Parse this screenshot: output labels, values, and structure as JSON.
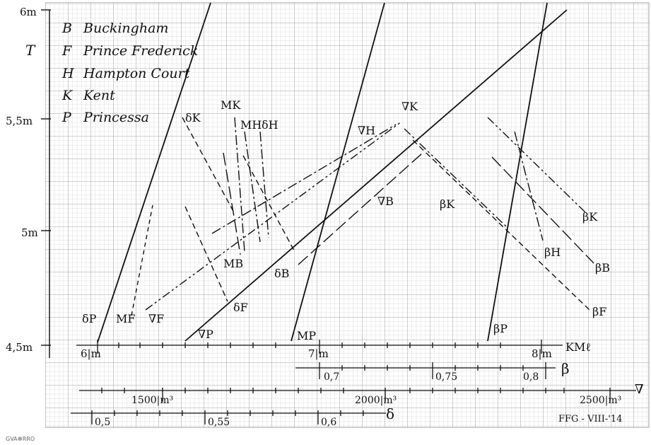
{
  "chart_data": {
    "type": "line",
    "title": "",
    "y_axis": {
      "ticks": [
        "6m",
        "5,5m",
        "5m",
        "4,5m"
      ],
      "symbol": "T"
    },
    "legend": [
      {
        "key": "B",
        "name": "Buckingham"
      },
      {
        "key": "F",
        "name": "Prince Frederick"
      },
      {
        "key": "H",
        "name": "Hampton Court"
      },
      {
        "key": "K",
        "name": "Kent"
      },
      {
        "key": "P",
        "name": "Princessa"
      }
    ],
    "x_scales": [
      {
        "id": "KML",
        "symbol": "KMℓ",
        "ticks": [
          "6|m",
          "7|m",
          "8|m"
        ]
      },
      {
        "id": "beta",
        "symbol": "β",
        "ticks": [
          "0,7",
          "0,75",
          "0,8"
        ]
      },
      {
        "id": "nabla",
        "symbol": "∇",
        "ticks": [
          "1500|m³",
          "2000|m³",
          "2500|m³"
        ]
      },
      {
        "id": "delta",
        "symbol": "δ",
        "ticks": [
          "0,5",
          "0,55",
          "0,6"
        ]
      }
    ],
    "series": [
      {
        "name": "δP",
        "style": "solid"
      },
      {
        "name": "MP",
        "style": "solid"
      },
      {
        "name": "βP",
        "style": "solid"
      },
      {
        "name": "∇P",
        "style": "solid"
      },
      {
        "name": "δK",
        "style": "dashed"
      },
      {
        "name": "MK",
        "style": "dashdot"
      },
      {
        "name": "MH",
        "style": "dashdot"
      },
      {
        "name": "δH",
        "style": "dashdot"
      },
      {
        "name": "∇H",
        "style": "dashdot"
      },
      {
        "name": "∇K",
        "style": "dashdotdot"
      },
      {
        "name": "∇B",
        "style": "longdash"
      },
      {
        "name": "βK",
        "style": "dashdotdot"
      },
      {
        "name": "βH",
        "style": "dashdot"
      },
      {
        "name": "βB",
        "style": "longdash"
      },
      {
        "name": "βF",
        "style": "dashed"
      },
      {
        "name": "MB",
        "style": "longdash"
      },
      {
        "name": "δB",
        "style": "dashed"
      },
      {
        "name": "δF",
        "style": "dashed"
      },
      {
        "name": "MF",
        "style": "dashed"
      },
      {
        "name": "∇F",
        "style": "dashed"
      }
    ],
    "signature": "FFG - VIII-'14",
    "credit": "GVA☸RRO",
    "grid": true
  }
}
